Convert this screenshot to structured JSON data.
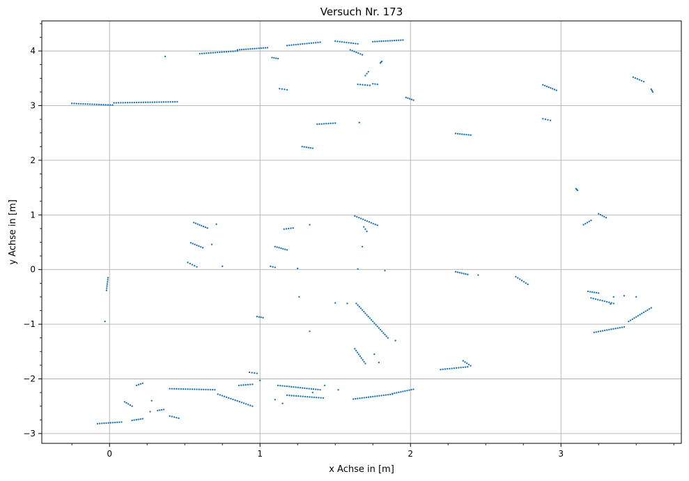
{
  "chart_data": {
    "type": "scatter",
    "title": "Versuch Nr. 173",
    "xlabel": "x Achse in [m]",
    "ylabel": "y Achse in [m]",
    "xlim": [
      -0.45,
      3.8
    ],
    "ylim": [
      -3.18,
      4.55
    ],
    "xticks": [
      0,
      1,
      2,
      3
    ],
    "yticks": [
      -3,
      -2,
      -1,
      0,
      1,
      2,
      3,
      4
    ],
    "xtick_labels": [
      "0",
      "1",
      "2",
      "3"
    ],
    "ytick_labels": [
      "−3",
      "−2",
      "−1",
      "0",
      "1",
      "2",
      "3",
      "4"
    ],
    "grid": true,
    "marker_color": "#1f77b4",
    "segments": [
      [
        [
          -0.25,
          3.04
        ],
        [
          0.02,
          3.01
        ]
      ],
      [
        [
          0.03,
          3.05
        ],
        [
          0.45,
          3.07
        ]
      ],
      [
        [
          0.6,
          3.95
        ],
        [
          0.85,
          4.0
        ]
      ],
      [
        [
          0.85,
          4.02
        ],
        [
          1.05,
          4.06
        ]
      ],
      [
        [
          1.18,
          4.1
        ],
        [
          1.4,
          4.16
        ]
      ],
      [
        [
          1.5,
          4.18
        ],
        [
          1.65,
          4.13
        ]
      ],
      [
        [
          1.75,
          4.17
        ],
        [
          1.95,
          4.2
        ]
      ],
      [
        [
          1.08,
          3.88
        ],
        [
          1.12,
          3.86
        ]
      ],
      [
        [
          1.6,
          4.02
        ],
        [
          1.68,
          3.93
        ]
      ],
      [
        [
          1.65,
          3.39
        ],
        [
          1.73,
          3.37
        ]
      ],
      [
        [
          1.7,
          3.55
        ],
        [
          1.72,
          3.62
        ]
      ],
      [
        [
          1.75,
          3.4
        ],
        [
          1.78,
          3.39
        ]
      ],
      [
        [
          1.8,
          3.78
        ],
        [
          1.81,
          3.81
        ]
      ],
      [
        [
          1.13,
          3.31
        ],
        [
          1.18,
          3.29
        ]
      ],
      [
        [
          1.97,
          3.15
        ],
        [
          2.02,
          3.1
        ]
      ],
      [
        [
          1.38,
          2.66
        ],
        [
          1.5,
          2.68
        ]
      ],
      [
        [
          1.28,
          2.25
        ],
        [
          1.35,
          2.22
        ]
      ],
      [
        [
          2.3,
          2.49
        ],
        [
          2.4,
          2.46
        ]
      ],
      [
        [
          2.88,
          3.38
        ],
        [
          2.97,
          3.28
        ]
      ],
      [
        [
          2.88,
          2.76
        ],
        [
          2.93,
          2.73
        ]
      ],
      [
        [
          3.48,
          3.52
        ],
        [
          3.55,
          3.44
        ]
      ],
      [
        [
          3.6,
          3.3
        ],
        [
          3.61,
          3.25
        ]
      ],
      [
        [
          3.1,
          1.48
        ],
        [
          3.11,
          1.45
        ]
      ],
      [
        [
          3.15,
          0.82
        ],
        [
          3.2,
          0.9
        ]
      ],
      [
        [
          3.25,
          1.02
        ],
        [
          3.3,
          0.95
        ]
      ],
      [
        [
          0.56,
          0.86
        ],
        [
          0.65,
          0.76
        ]
      ],
      [
        [
          0.54,
          0.49
        ],
        [
          0.62,
          0.4
        ]
      ],
      [
        [
          0.52,
          0.13
        ],
        [
          0.58,
          0.05
        ]
      ],
      [
        [
          1.1,
          0.42
        ],
        [
          1.18,
          0.36
        ]
      ],
      [
        [
          1.16,
          0.74
        ],
        [
          1.22,
          0.76
        ]
      ],
      [
        [
          1.07,
          0.06
        ],
        [
          1.1,
          0.04
        ]
      ],
      [
        [
          1.63,
          0.98
        ],
        [
          1.78,
          0.81
        ]
      ],
      [
        [
          1.69,
          0.78
        ],
        [
          1.71,
          0.7
        ]
      ],
      [
        [
          -0.01,
          -0.15
        ],
        [
          -0.02,
          -0.38
        ]
      ],
      [
        [
          1.64,
          -0.62
        ],
        [
          1.85,
          -1.25
        ]
      ],
      [
        [
          1.63,
          -1.45
        ],
        [
          1.7,
          -1.72
        ]
      ],
      [
        [
          2.3,
          -0.04
        ],
        [
          2.38,
          -0.09
        ]
      ],
      [
        [
          2.7,
          -0.13
        ],
        [
          2.78,
          -0.27
        ]
      ],
      [
        [
          3.18,
          -0.4
        ],
        [
          3.25,
          -0.43
        ]
      ],
      [
        [
          3.2,
          -0.52
        ],
        [
          3.35,
          -0.62
        ]
      ],
      [
        [
          3.22,
          -1.15
        ],
        [
          3.42,
          -1.05
        ]
      ],
      [
        [
          3.45,
          -0.95
        ],
        [
          3.6,
          -0.7
        ]
      ],
      [
        [
          -0.08,
          -2.82
        ],
        [
          0.08,
          -2.79
        ]
      ],
      [
        [
          0.1,
          -2.42
        ],
        [
          0.15,
          -2.5
        ]
      ],
      [
        [
          0.15,
          -2.76
        ],
        [
          0.22,
          -2.73
        ]
      ],
      [
        [
          0.18,
          -2.12
        ],
        [
          0.22,
          -2.08
        ]
      ],
      [
        [
          0.32,
          -2.58
        ],
        [
          0.36,
          -2.56
        ]
      ],
      [
        [
          0.4,
          -2.68
        ],
        [
          0.46,
          -2.72
        ]
      ],
      [
        [
          0.4,
          -2.18
        ],
        [
          0.7,
          -2.2
        ]
      ],
      [
        [
          0.72,
          -2.28
        ],
        [
          0.95,
          -2.5
        ]
      ],
      [
        [
          0.86,
          -2.12
        ],
        [
          0.95,
          -2.1
        ]
      ],
      [
        [
          0.93,
          -1.88
        ],
        [
          0.98,
          -1.9
        ]
      ],
      [
        [
          1.12,
          -2.12
        ],
        [
          1.4,
          -2.2
        ]
      ],
      [
        [
          1.18,
          -2.3
        ],
        [
          1.42,
          -2.35
        ]
      ],
      [
        [
          1.62,
          -2.37
        ],
        [
          1.88,
          -2.28
        ]
      ],
      [
        [
          1.88,
          -2.27
        ],
        [
          2.02,
          -2.19
        ]
      ],
      [
        [
          2.2,
          -1.83
        ],
        [
          2.38,
          -1.78
        ]
      ],
      [
        [
          2.35,
          -1.67
        ],
        [
          2.4,
          -1.76
        ]
      ],
      [
        [
          0.98,
          -0.86
        ],
        [
          1.02,
          -0.88
        ]
      ]
    ],
    "points": [
      [
        0.37,
        3.9
      ],
      [
        1.25,
        0.02
      ],
      [
        1.26,
        -0.5
      ],
      [
        1.33,
        0.82
      ],
      [
        1.33,
        -1.13
      ],
      [
        1.5,
        -0.61
      ],
      [
        1.58,
        -0.62
      ],
      [
        1.66,
        2.69
      ],
      [
        1.68,
        0.42
      ],
      [
        1.65,
        0.01
      ],
      [
        1.83,
        -0.02
      ],
      [
        0.68,
        0.46
      ],
      [
        0.71,
        0.83
      ],
      [
        0.75,
        0.06
      ],
      [
        2.45,
        -0.1
      ],
      [
        -0.03,
        -0.95
      ],
      [
        3.35,
        -0.5
      ],
      [
        3.42,
        -0.48
      ],
      [
        3.5,
        -0.5
      ],
      [
        3.33,
        -0.63
      ],
      [
        1.9,
        -1.3
      ],
      [
        1.76,
        -1.55
      ],
      [
        1.79,
        -1.7
      ],
      [
        1.52,
        -2.2
      ],
      [
        1.43,
        -2.12
      ],
      [
        1.35,
        -2.25
      ],
      [
        1.0,
        -2.03
      ],
      [
        0.28,
        -2.4
      ],
      [
        0.27,
        -2.6
      ],
      [
        1.1,
        -2.38
      ],
      [
        1.15,
        -2.45
      ]
    ]
  }
}
